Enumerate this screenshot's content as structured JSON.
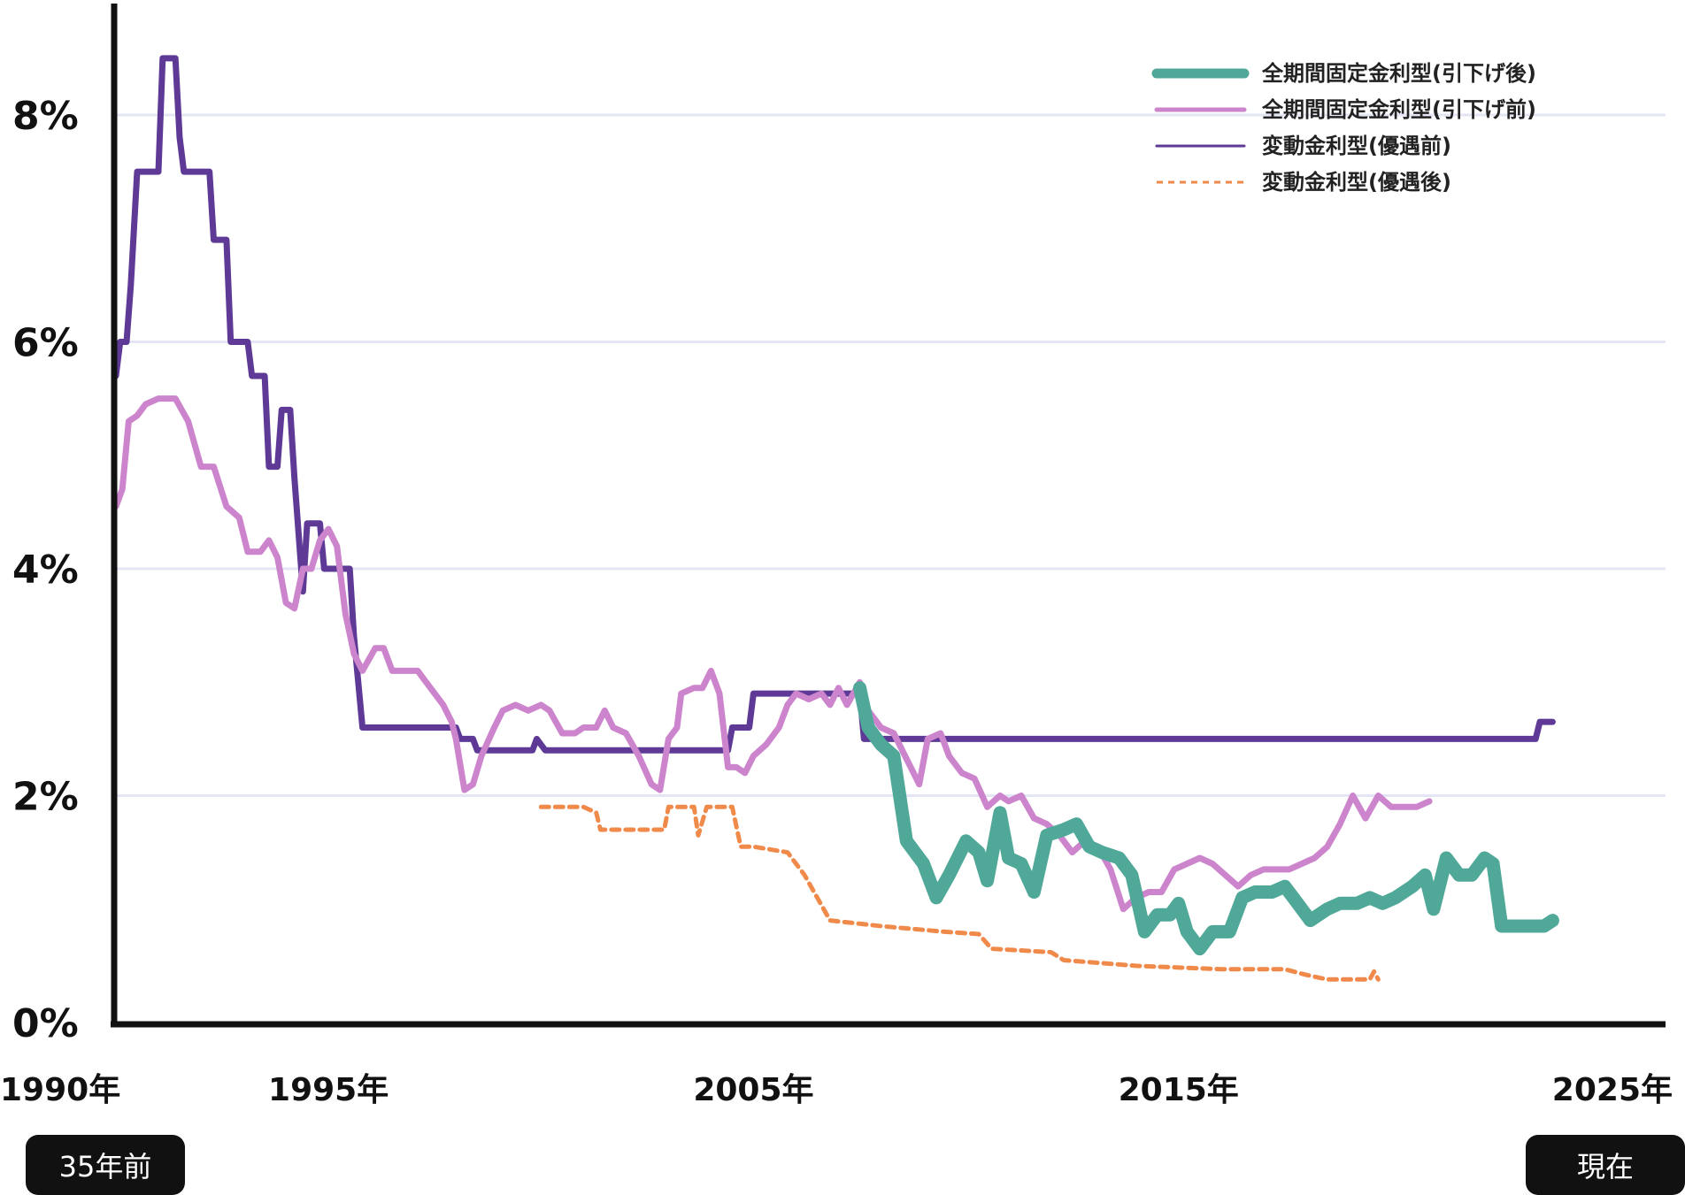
{
  "chart_data": {
    "type": "line",
    "title": "",
    "xlabel": "",
    "ylabel": "",
    "ylim": [
      0,
      9
    ],
    "xlim": [
      1990,
      2025.3
    ],
    "y_ticks": [
      {
        "value": 0,
        "label": "0%"
      },
      {
        "value": 2,
        "label": "2%"
      },
      {
        "value": 4,
        "label": "4%"
      },
      {
        "value": 6,
        "label": "6%"
      },
      {
        "value": 8,
        "label": "8%"
      }
    ],
    "x_ticks": [
      {
        "value": 1990,
        "label": "1990年"
      },
      {
        "value": 1995,
        "label": "1995年"
      },
      {
        "value": 2005,
        "label": "2005年"
      },
      {
        "value": 2015,
        "label": "2015年"
      },
      {
        "value": 2025,
        "label": "2025年"
      }
    ],
    "grid": "horizontal",
    "legend_position": "top-right",
    "series": [
      {
        "name": "全期間固定金利型(引下げ後)",
        "color": "#4fa898",
        "style": "thick",
        "points": [
          [
            2007.5,
            2.95
          ],
          [
            2007.7,
            2.6
          ],
          [
            2008.0,
            2.45
          ],
          [
            2008.3,
            2.35
          ],
          [
            2008.6,
            1.6
          ],
          [
            2009.0,
            1.4
          ],
          [
            2009.3,
            1.1
          ],
          [
            2009.6,
            1.3
          ],
          [
            2010.0,
            1.6
          ],
          [
            2010.3,
            1.5
          ],
          [
            2010.5,
            1.25
          ],
          [
            2010.8,
            1.85
          ],
          [
            2011.0,
            1.45
          ],
          [
            2011.3,
            1.4
          ],
          [
            2011.6,
            1.15
          ],
          [
            2011.9,
            1.65
          ],
          [
            2012.3,
            1.7
          ],
          [
            2012.6,
            1.75
          ],
          [
            2012.9,
            1.55
          ],
          [
            2013.2,
            1.5
          ],
          [
            2013.6,
            1.45
          ],
          [
            2013.9,
            1.3
          ],
          [
            2014.2,
            0.8
          ],
          [
            2014.5,
            0.95
          ],
          [
            2014.8,
            0.95
          ],
          [
            2015.0,
            1.05
          ],
          [
            2015.2,
            0.8
          ],
          [
            2015.5,
            0.65
          ],
          [
            2015.8,
            0.8
          ],
          [
            2016.2,
            0.8
          ],
          [
            2016.5,
            1.1
          ],
          [
            2016.8,
            1.15
          ],
          [
            2017.2,
            1.15
          ],
          [
            2017.5,
            1.2
          ],
          [
            2017.8,
            1.05
          ],
          [
            2018.1,
            0.9
          ],
          [
            2018.5,
            1.0
          ],
          [
            2018.8,
            1.05
          ],
          [
            2019.2,
            1.05
          ],
          [
            2019.5,
            1.1
          ],
          [
            2019.8,
            1.05
          ],
          [
            2020.1,
            1.1
          ],
          [
            2020.5,
            1.2
          ],
          [
            2020.8,
            1.3
          ],
          [
            2021.0,
            1.0
          ],
          [
            2021.3,
            1.45
          ],
          [
            2021.6,
            1.3
          ],
          [
            2021.9,
            1.3
          ],
          [
            2022.2,
            1.45
          ],
          [
            2022.4,
            1.4
          ],
          [
            2022.6,
            0.85
          ],
          [
            2022.9,
            0.85
          ],
          [
            2023.2,
            0.85
          ],
          [
            2023.4,
            0.85
          ],
          [
            2023.6,
            0.85
          ],
          [
            2023.8,
            0.9
          ]
        ]
      },
      {
        "name": "全期間固定金利型(引下げ前)",
        "color": "#cc85cc",
        "style": "medium",
        "points": [
          [
            1990.0,
            4.55
          ],
          [
            1990.15,
            4.7
          ],
          [
            1990.3,
            5.3
          ],
          [
            1990.5,
            5.35
          ],
          [
            1990.7,
            5.45
          ],
          [
            1991.0,
            5.5
          ],
          [
            1991.4,
            5.5
          ],
          [
            1991.7,
            5.3
          ],
          [
            1992.0,
            4.9
          ],
          [
            1992.3,
            4.9
          ],
          [
            1992.6,
            4.55
          ],
          [
            1992.9,
            4.45
          ],
          [
            1993.1,
            4.15
          ],
          [
            1993.4,
            4.15
          ],
          [
            1993.6,
            4.25
          ],
          [
            1993.8,
            4.1
          ],
          [
            1994.0,
            3.7
          ],
          [
            1994.2,
            3.65
          ],
          [
            1994.4,
            4.0
          ],
          [
            1994.6,
            4.0
          ],
          [
            1994.8,
            4.25
          ],
          [
            1995.0,
            4.35
          ],
          [
            1995.2,
            4.2
          ],
          [
            1995.4,
            3.6
          ],
          [
            1995.6,
            3.25
          ],
          [
            1995.8,
            3.1
          ],
          [
            1996.1,
            3.3
          ],
          [
            1996.3,
            3.3
          ],
          [
            1996.5,
            3.1
          ],
          [
            1996.8,
            3.1
          ],
          [
            1997.1,
            3.1
          ],
          [
            1997.3,
            3.0
          ],
          [
            1997.7,
            2.8
          ],
          [
            1997.9,
            2.65
          ],
          [
            1998.0,
            2.5
          ],
          [
            1998.2,
            2.05
          ],
          [
            1998.4,
            2.1
          ],
          [
            1998.6,
            2.35
          ],
          [
            1998.9,
            2.6
          ],
          [
            1999.1,
            2.75
          ],
          [
            1999.4,
            2.8
          ],
          [
            1999.7,
            2.75
          ],
          [
            2000.0,
            2.8
          ],
          [
            2000.2,
            2.75
          ],
          [
            2000.5,
            2.55
          ],
          [
            2000.8,
            2.55
          ],
          [
            2001.0,
            2.6
          ],
          [
            2001.3,
            2.6
          ],
          [
            2001.5,
            2.75
          ],
          [
            2001.7,
            2.6
          ],
          [
            2002.0,
            2.55
          ],
          [
            2002.3,
            2.35
          ],
          [
            2002.6,
            2.1
          ],
          [
            2002.8,
            2.05
          ],
          [
            2003.0,
            2.5
          ],
          [
            2003.2,
            2.6
          ],
          [
            2003.3,
            2.9
          ],
          [
            2003.6,
            2.95
          ],
          [
            2003.8,
            2.95
          ],
          [
            2004.0,
            3.1
          ],
          [
            2004.2,
            2.9
          ],
          [
            2004.4,
            2.25
          ],
          [
            2004.6,
            2.25
          ],
          [
            2004.8,
            2.2
          ],
          [
            2005.0,
            2.35
          ],
          [
            2005.3,
            2.45
          ],
          [
            2005.6,
            2.6
          ],
          [
            2005.8,
            2.8
          ],
          [
            2006.0,
            2.9
          ],
          [
            2006.3,
            2.85
          ],
          [
            2006.6,
            2.9
          ],
          [
            2006.8,
            2.8
          ],
          [
            2007.0,
            2.95
          ],
          [
            2007.2,
            2.8
          ],
          [
            2007.5,
            3.0
          ],
          [
            2007.7,
            2.75
          ],
          [
            2008.0,
            2.6
          ],
          [
            2008.3,
            2.55
          ],
          [
            2008.5,
            2.4
          ],
          [
            2008.7,
            2.25
          ],
          [
            2008.9,
            2.1
          ],
          [
            2009.1,
            2.5
          ],
          [
            2009.4,
            2.55
          ],
          [
            2009.6,
            2.35
          ],
          [
            2009.9,
            2.2
          ],
          [
            2010.2,
            2.15
          ],
          [
            2010.5,
            1.9
          ],
          [
            2010.8,
            2.0
          ],
          [
            2011.0,
            1.95
          ],
          [
            2011.3,
            2.0
          ],
          [
            2011.6,
            1.8
          ],
          [
            2011.9,
            1.75
          ],
          [
            2012.2,
            1.65
          ],
          [
            2012.5,
            1.5
          ],
          [
            2012.8,
            1.6
          ],
          [
            2013.1,
            1.55
          ],
          [
            2013.4,
            1.35
          ],
          [
            2013.7,
            1.0
          ],
          [
            2014.0,
            1.1
          ],
          [
            2014.3,
            1.15
          ],
          [
            2014.6,
            1.15
          ],
          [
            2014.9,
            1.35
          ],
          [
            2015.2,
            1.4
          ],
          [
            2015.5,
            1.45
          ],
          [
            2015.8,
            1.4
          ],
          [
            2016.1,
            1.3
          ],
          [
            2016.4,
            1.2
          ],
          [
            2016.7,
            1.3
          ],
          [
            2017.0,
            1.35
          ],
          [
            2017.3,
            1.35
          ],
          [
            2017.6,
            1.35
          ],
          [
            2017.9,
            1.4
          ],
          [
            2018.2,
            1.45
          ],
          [
            2018.5,
            1.55
          ],
          [
            2018.8,
            1.75
          ],
          [
            2019.1,
            2.0
          ],
          [
            2019.4,
            1.8
          ],
          [
            2019.7,
            2.0
          ],
          [
            2020.0,
            1.9
          ],
          [
            2020.3,
            1.9
          ],
          [
            2020.6,
            1.9
          ],
          [
            2020.9,
            1.95
          ]
        ]
      },
      {
        "name": "変動金利型(優遇前)",
        "color": "#5e3a96",
        "style": "medium",
        "points": [
          [
            1990.0,
            5.7
          ],
          [
            1990.1,
            6.0
          ],
          [
            1990.25,
            6.0
          ],
          [
            1990.35,
            6.5
          ],
          [
            1990.5,
            7.5
          ],
          [
            1991.0,
            7.5
          ],
          [
            1991.1,
            8.5
          ],
          [
            1991.4,
            8.5
          ],
          [
            1991.5,
            7.8
          ],
          [
            1991.6,
            7.5
          ],
          [
            1992.2,
            7.5
          ],
          [
            1992.3,
            6.9
          ],
          [
            1992.6,
            6.9
          ],
          [
            1992.7,
            6.0
          ],
          [
            1993.1,
            6.0
          ],
          [
            1993.2,
            5.7
          ],
          [
            1993.5,
            5.7
          ],
          [
            1993.6,
            4.9
          ],
          [
            1993.8,
            4.9
          ],
          [
            1993.9,
            5.4
          ],
          [
            1994.1,
            5.4
          ],
          [
            1994.2,
            4.8
          ],
          [
            1994.4,
            3.8
          ],
          [
            1994.5,
            4.4
          ],
          [
            1994.8,
            4.4
          ],
          [
            1994.9,
            4.0
          ],
          [
            1995.5,
            4.0
          ],
          [
            1995.6,
            3.4
          ],
          [
            1995.8,
            2.6
          ],
          [
            1998.0,
            2.6
          ],
          [
            1998.1,
            2.5
          ],
          [
            1998.4,
            2.5
          ],
          [
            1998.5,
            2.4
          ],
          [
            1999.8,
            2.4
          ],
          [
            1999.9,
            2.5
          ],
          [
            2000.1,
            2.4
          ],
          [
            2002.0,
            2.4
          ],
          [
            2002.1,
            2.4
          ],
          [
            2004.4,
            2.4
          ],
          [
            2004.5,
            2.6
          ],
          [
            2004.9,
            2.6
          ],
          [
            2005.0,
            2.9
          ],
          [
            2007.5,
            2.9
          ],
          [
            2007.6,
            2.5
          ],
          [
            2023.4,
            2.5
          ],
          [
            2023.5,
            2.65
          ],
          [
            2023.8,
            2.65
          ]
        ]
      },
      {
        "name": "変動金利型(優遇後)",
        "color": "#f08a4b",
        "style": "dotted",
        "points": [
          [
            2000.0,
            1.9
          ],
          [
            2001.0,
            1.9
          ],
          [
            2001.3,
            1.85
          ],
          [
            2001.4,
            1.7
          ],
          [
            2002.5,
            1.7
          ],
          [
            2002.9,
            1.7
          ],
          [
            2003.0,
            1.9
          ],
          [
            2003.6,
            1.9
          ],
          [
            2003.7,
            1.65
          ],
          [
            2003.9,
            1.9
          ],
          [
            2004.5,
            1.9
          ],
          [
            2004.7,
            1.55
          ],
          [
            2005.0,
            1.55
          ],
          [
            2005.8,
            1.5
          ],
          [
            2006.2,
            1.3
          ],
          [
            2006.5,
            1.1
          ],
          [
            2006.8,
            0.9
          ],
          [
            2008.0,
            0.85
          ],
          [
            2009.5,
            0.8
          ],
          [
            2010.3,
            0.78
          ],
          [
            2010.6,
            0.65
          ],
          [
            2012.0,
            0.62
          ],
          [
            2012.3,
            0.55
          ],
          [
            2014.0,
            0.5
          ],
          [
            2016.0,
            0.47
          ],
          [
            2017.5,
            0.47
          ],
          [
            2018.0,
            0.42
          ],
          [
            2018.5,
            0.38
          ],
          [
            2019.5,
            0.38
          ],
          [
            2019.6,
            0.45
          ],
          [
            2019.7,
            0.38
          ]
        ]
      }
    ],
    "annotations": [
      {
        "position": "under-1990年",
        "text": "35年前"
      },
      {
        "position": "under-2025年",
        "text": "現在"
      }
    ]
  }
}
